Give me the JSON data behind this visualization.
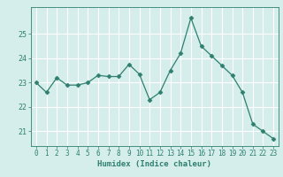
{
  "x": [
    0,
    1,
    2,
    3,
    4,
    5,
    6,
    7,
    8,
    9,
    10,
    11,
    12,
    13,
    14,
    15,
    16,
    17,
    18,
    19,
    20,
    21,
    22,
    23
  ],
  "y": [
    23.0,
    22.6,
    23.2,
    22.9,
    22.9,
    23.0,
    23.3,
    23.25,
    23.25,
    23.75,
    23.35,
    22.3,
    22.6,
    23.5,
    24.2,
    25.65,
    24.5,
    24.1,
    23.7,
    23.3,
    22.6,
    21.3,
    21.0,
    20.7
  ],
  "line_color": "#2e7f6f",
  "marker": "D",
  "marker_size": 2.5,
  "bg_color": "#d5eeeb",
  "grid_color": "#ffffff",
  "tick_label_color": "#2e7f6f",
  "xlabel": "Humidex (Indice chaleur)",
  "ylim": [
    20.4,
    26.1
  ],
  "yticks": [
    21,
    22,
    23,
    24,
    25
  ],
  "xlabels": [
    "0",
    "1",
    "2",
    "3",
    "4",
    "5",
    "6",
    "7",
    "8",
    "9",
    "10",
    "11",
    "12",
    "13",
    "14",
    "15",
    "16",
    "17",
    "18",
    "19",
    "20",
    "21",
    "22",
    "23"
  ]
}
